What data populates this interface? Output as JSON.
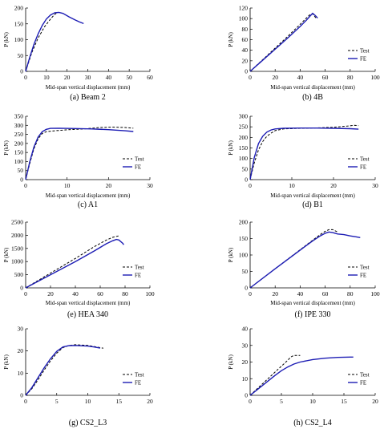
{
  "figure": {
    "background": "#ffffff"
  },
  "style": {
    "test_color": "#000000",
    "fe_color": "#1c1cb4"
  },
  "chart_data": [
    {
      "type": "line",
      "caption": "(a)  Beam 2",
      "xlabel": "Mid-span vertical displacement (mm)",
      "ylabel": "P (kN)",
      "xlim": [
        0,
        60
      ],
      "ylim": [
        0,
        200
      ],
      "xticks": [
        0,
        10,
        20,
        30,
        40,
        50,
        60
      ],
      "yticks": [
        0,
        50,
        100,
        150,
        200
      ],
      "legend": "none",
      "series": [
        {
          "name": "Test",
          "style": "dashed",
          "points": [
            [
              0,
              0
            ],
            [
              3,
              60
            ],
            [
              6,
              105
            ],
            [
              9,
              140
            ],
            [
              12,
              165
            ],
            [
              14,
              180
            ],
            [
              15.5,
              186
            ]
          ]
        },
        {
          "name": "FE",
          "style": "solid",
          "points": [
            [
              0,
              0
            ],
            [
              2,
              45
            ],
            [
              4,
              85
            ],
            [
              6,
              118
            ],
            [
              8,
              145
            ],
            [
              10,
              165
            ],
            [
              12,
              178
            ],
            [
              14,
              185
            ],
            [
              16,
              186
            ],
            [
              18,
              183
            ],
            [
              21,
              172
            ],
            [
              24,
              162
            ],
            [
              26,
              156
            ],
            [
              28,
              151
            ]
          ]
        }
      ]
    },
    {
      "type": "line",
      "caption": "(b)  4B",
      "xlabel": "Mid-span vertical displacement (mm)",
      "ylabel": "P (kN)",
      "xlim": [
        0,
        100
      ],
      "ylim": [
        0,
        120
      ],
      "xticks": [
        0,
        20,
        40,
        60,
        80,
        100
      ],
      "yticks": [
        0,
        20,
        40,
        60,
        80,
        100,
        120
      ],
      "legend": "right",
      "series": [
        {
          "name": "Test",
          "style": "dashed",
          "points": [
            [
              0,
              0
            ],
            [
              10,
              22
            ],
            [
              20,
              44
            ],
            [
              30,
              66
            ],
            [
              40,
              89
            ],
            [
              45,
              101
            ],
            [
              48,
              108
            ],
            [
              50,
              109
            ],
            [
              52,
              103
            ],
            [
              53,
              100
            ]
          ]
        },
        {
          "name": "FE",
          "style": "solid",
          "points": [
            [
              0,
              0
            ],
            [
              10,
              21
            ],
            [
              20,
              42
            ],
            [
              30,
              63
            ],
            [
              40,
              85
            ],
            [
              45,
              97
            ],
            [
              48,
              105
            ],
            [
              50,
              110
            ],
            [
              52,
              106
            ],
            [
              54,
              101
            ]
          ]
        }
      ]
    },
    {
      "type": "line",
      "caption": "(c)  A1",
      "xlabel": "Mid-span vertical displacement (mm)",
      "ylabel": "P (kN)",
      "xlim": [
        0,
        30
      ],
      "ylim": [
        0,
        350
      ],
      "xticks": [
        0,
        10,
        20,
        30
      ],
      "yticks": [
        0,
        50,
        100,
        150,
        200,
        250,
        300,
        350
      ],
      "legend": "right",
      "series": [
        {
          "name": "Test",
          "style": "dashed",
          "points": [
            [
              0,
              0
            ],
            [
              1,
              90
            ],
            [
              2,
              170
            ],
            [
              3,
              225
            ],
            [
              4,
              255
            ],
            [
              5,
              265
            ],
            [
              7,
              270
            ],
            [
              10,
              275
            ],
            [
              14,
              280
            ],
            [
              18,
              288
            ],
            [
              21,
              290
            ],
            [
              24,
              288
            ],
            [
              26,
              284
            ]
          ]
        },
        {
          "name": "FE",
          "style": "solid",
          "points": [
            [
              0,
              0
            ],
            [
              1,
              100
            ],
            [
              2,
              180
            ],
            [
              3,
              235
            ],
            [
              4,
              265
            ],
            [
              5,
              278
            ],
            [
              6,
              283
            ],
            [
              8,
              284
            ],
            [
              12,
              282
            ],
            [
              16,
              280
            ],
            [
              20,
              276
            ],
            [
              24,
              270
            ],
            [
              26,
              266
            ]
          ]
        }
      ]
    },
    {
      "type": "line",
      "caption": "(d)  B1",
      "xlabel": "Mid-span vertical displacement (mm)",
      "ylabel": "P (kN)",
      "xlim": [
        0,
        30
      ],
      "ylim": [
        0,
        300
      ],
      "xticks": [
        0,
        10,
        20,
        30
      ],
      "yticks": [
        0,
        50,
        100,
        150,
        200,
        250,
        300
      ],
      "legend": "right",
      "series": [
        {
          "name": "Test",
          "style": "dashed",
          "points": [
            [
              0,
              0
            ],
            [
              1,
              80
            ],
            [
              2,
              140
            ],
            [
              3,
              180
            ],
            [
              4,
              205
            ],
            [
              5,
              220
            ],
            [
              6,
              232
            ],
            [
              8,
              240
            ],
            [
              12,
              243
            ],
            [
              16,
              245
            ],
            [
              20,
              248
            ],
            [
              23,
              253
            ],
            [
              25,
              257
            ],
            [
              26,
              256
            ]
          ]
        },
        {
          "name": "FE",
          "style": "solid",
          "points": [
            [
              0,
              0
            ],
            [
              1,
              105
            ],
            [
              2,
              170
            ],
            [
              3,
              205
            ],
            [
              4,
              225
            ],
            [
              5,
              235
            ],
            [
              6,
              240
            ],
            [
              8,
              243
            ],
            [
              12,
              244
            ],
            [
              16,
              244
            ],
            [
              20,
              243
            ],
            [
              24,
              241
            ],
            [
              26,
              239
            ]
          ]
        }
      ]
    },
    {
      "type": "line",
      "caption": "(e)  HEA 340",
      "xlabel": "Mid-span vertical displacement (mm)",
      "ylabel": "P (kN)",
      "xlim": [
        0,
        100
      ],
      "ylim": [
        0,
        2500
      ],
      "xticks": [
        0,
        20,
        40,
        60,
        80,
        100
      ],
      "yticks": [
        0,
        500,
        1000,
        1500,
        2000,
        2500
      ],
      "legend": "right",
      "series": [
        {
          "name": "Test",
          "style": "dashed",
          "points": [
            [
              0,
              0
            ],
            [
              20,
              560
            ],
            [
              40,
              1120
            ],
            [
              55,
              1560
            ],
            [
              65,
              1820
            ],
            [
              70,
              1920
            ],
            [
              75,
              1980
            ]
          ]
        },
        {
          "name": "FE",
          "style": "solid",
          "points": [
            [
              0,
              0
            ],
            [
              20,
              500
            ],
            [
              40,
              1000
            ],
            [
              55,
              1400
            ],
            [
              65,
              1680
            ],
            [
              70,
              1790
            ],
            [
              73,
              1840
            ],
            [
              75,
              1820
            ],
            [
              78,
              1700
            ],
            [
              79,
              1640
            ]
          ]
        }
      ]
    },
    {
      "type": "line",
      "caption": "(f)  IPE 330",
      "xlabel": "Mid-span vertical displacement (mm)",
      "ylabel": "P (kN)",
      "xlim": [
        0,
        100
      ],
      "ylim": [
        0,
        200
      ],
      "xticks": [
        0,
        20,
        40,
        60,
        80,
        100
      ],
      "yticks": [
        0,
        50,
        100,
        150,
        200
      ],
      "legend": "right",
      "series": [
        {
          "name": "Test",
          "style": "dashed",
          "points": [
            [
              0,
              0
            ],
            [
              20,
              58
            ],
            [
              40,
              116
            ],
            [
              50,
              145
            ],
            [
              56,
              162
            ],
            [
              60,
              172
            ],
            [
              63,
              177
            ],
            [
              66,
              177
            ],
            [
              70,
              170
            ]
          ]
        },
        {
          "name": "FE",
          "style": "solid",
          "points": [
            [
              0,
              0
            ],
            [
              20,
              58
            ],
            [
              40,
              115
            ],
            [
              50,
              143
            ],
            [
              56,
              158
            ],
            [
              60,
              166
            ],
            [
              63,
              170
            ],
            [
              66,
              168
            ],
            [
              70,
              164
            ],
            [
              75,
              162
            ],
            [
              80,
              158
            ],
            [
              85,
              155
            ],
            [
              88,
              153
            ]
          ]
        }
      ]
    },
    {
      "type": "line",
      "caption": "(g)  CS2_L3",
      "xlabel": "",
      "ylabel": "P (kN)",
      "xlim": [
        0,
        20
      ],
      "ylim": [
        0,
        30
      ],
      "xticks": [
        0,
        5,
        10,
        15,
        20
      ],
      "yticks": [
        0,
        10,
        20,
        30
      ],
      "legend": "right",
      "series": [
        {
          "name": "Test",
          "style": "dashed",
          "points": [
            [
              0,
              0
            ],
            [
              1,
              3
            ],
            [
              2,
              7
            ],
            [
              3,
              11.5
            ],
            [
              4,
              15.5
            ],
            [
              5,
              19
            ],
            [
              6,
              21.5
            ],
            [
              7,
              22.5
            ],
            [
              8,
              22.8
            ],
            [
              10,
              22.5
            ],
            [
              12,
              21.5
            ],
            [
              12.5,
              21.2
            ]
          ]
        },
        {
          "name": "FE",
          "style": "solid",
          "points": [
            [
              0,
              0
            ],
            [
              1,
              3.5
            ],
            [
              2,
              8
            ],
            [
              3,
              12.5
            ],
            [
              4,
              16.5
            ],
            [
              5,
              19.8
            ],
            [
              6,
              21.8
            ],
            [
              7,
              22.4
            ],
            [
              8,
              22.5
            ],
            [
              10,
              22.2
            ],
            [
              11,
              21.8
            ],
            [
              12,
              21.3
            ]
          ]
        }
      ]
    },
    {
      "type": "line",
      "caption": "(h)  CS2_L4",
      "xlabel": "",
      "ylabel": "P (kN)",
      "xlim": [
        0,
        20
      ],
      "ylim": [
        0,
        40
      ],
      "xticks": [
        0,
        5,
        10,
        15,
        20
      ],
      "yticks": [
        0,
        10,
        20,
        30,
        40
      ],
      "legend": "right",
      "series": [
        {
          "name": "Test",
          "style": "dashed",
          "points": [
            [
              0,
              0
            ],
            [
              1,
              3.5
            ],
            [
              2,
              7
            ],
            [
              3,
              10.5
            ],
            [
              4,
              14
            ],
            [
              5,
              17.5
            ],
            [
              6,
              21
            ],
            [
              6.5,
              23
            ],
            [
              7,
              24
            ],
            [
              7.5,
              24
            ],
            [
              8,
              24
            ]
          ]
        },
        {
          "name": "FE",
          "style": "solid",
          "points": [
            [
              0,
              0
            ],
            [
              1,
              3
            ],
            [
              2,
              6
            ],
            [
              3,
              9
            ],
            [
              4,
              12
            ],
            [
              5,
              14.8
            ],
            [
              6,
              17
            ],
            [
              7,
              18.8
            ],
            [
              8,
              20
            ],
            [
              10,
              21.5
            ],
            [
              12,
              22.3
            ],
            [
              14,
              22.8
            ],
            [
              16,
              23
            ],
            [
              16.5,
              23
            ]
          ]
        }
      ]
    }
  ]
}
